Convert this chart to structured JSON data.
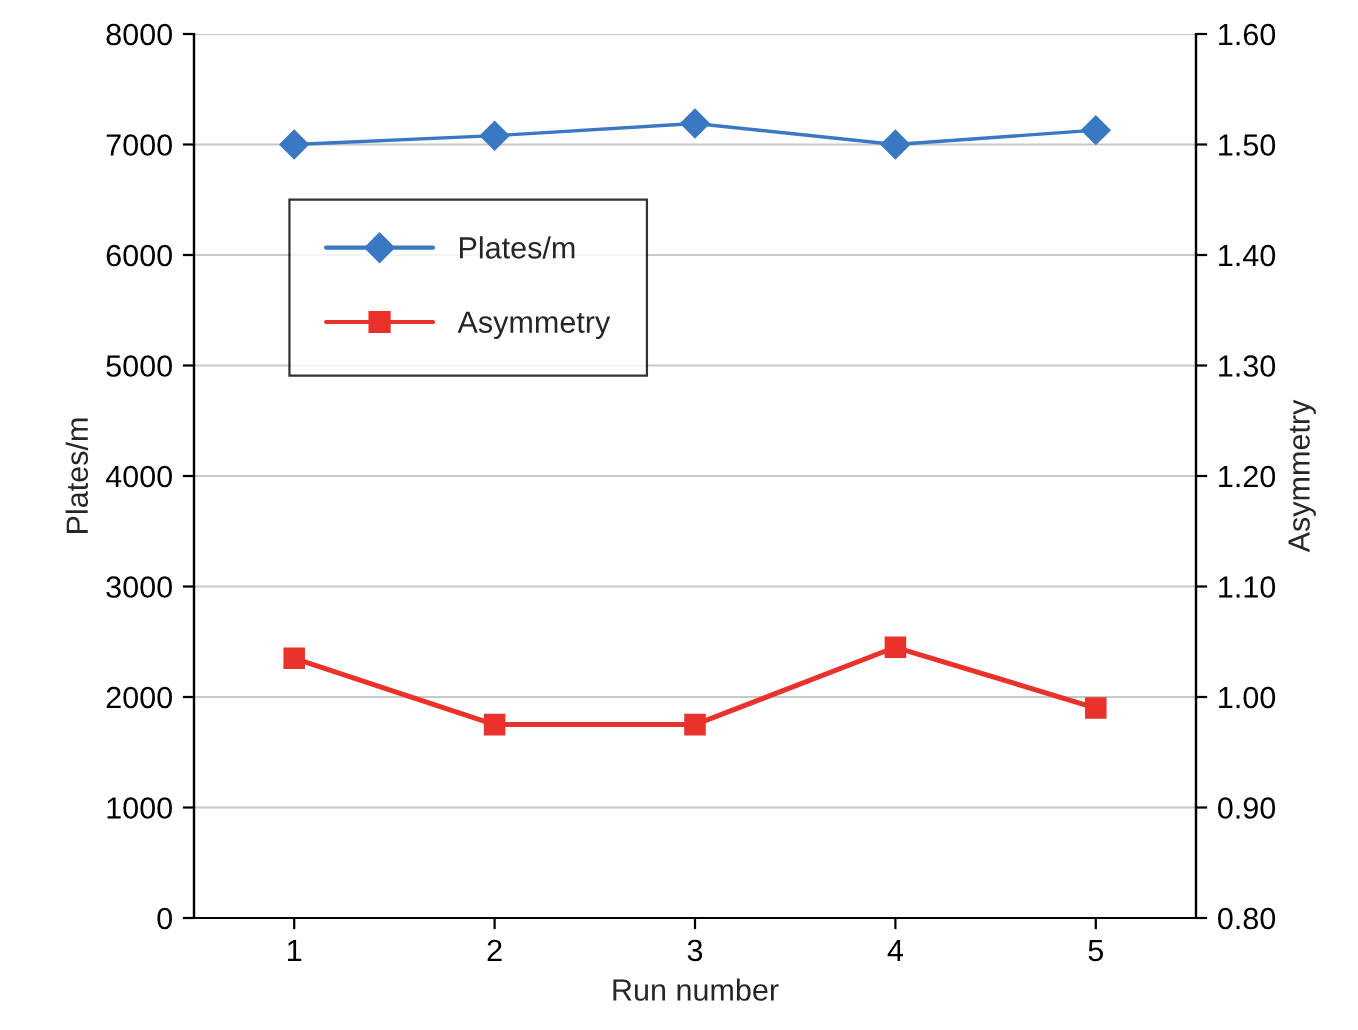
{
  "chart_data": {
    "type": "line",
    "categories": [
      "1",
      "2",
      "3",
      "4",
      "5"
    ],
    "xlabel": "Run number",
    "ylabel": "Plates/m",
    "y2label": "Asymmetry",
    "series": [
      {
        "name": "Plates/m",
        "color": "#3a78c3",
        "values": [
          7000,
          7080,
          7190,
          7000,
          7130
        ],
        "marker": "diamond"
      },
      {
        "name": "Asymmetry",
        "color": "#e8322b",
        "values": [
          1.035,
          0.975,
          0.975,
          1.045,
          0.99
        ],
        "axis": "y2",
        "marker": "square"
      }
    ],
    "ylim": [
      0,
      8000
    ],
    "yticks": [
      0,
      1000,
      2000,
      3000,
      4000,
      5000,
      6000,
      7000,
      8000
    ],
    "y2lim": [
      0.8,
      1.6
    ],
    "y2ticks": [
      {
        "value": 0.8,
        "label": "0.80"
      },
      {
        "value": 0.9,
        "label": "0.90"
      },
      {
        "value": 1.0,
        "label": "1.00"
      },
      {
        "value": 1.1,
        "label": "1.10"
      },
      {
        "value": 1.2,
        "label": "1.20"
      },
      {
        "value": 1.3,
        "label": "1.30"
      },
      {
        "value": 1.4,
        "label": "1.40"
      },
      {
        "value": 1.5,
        "label": "1.50"
      },
      {
        "value": 1.6,
        "label": "1.60"
      }
    ],
    "grid": "y",
    "legend": "top left",
    "line_style": "solid"
  }
}
